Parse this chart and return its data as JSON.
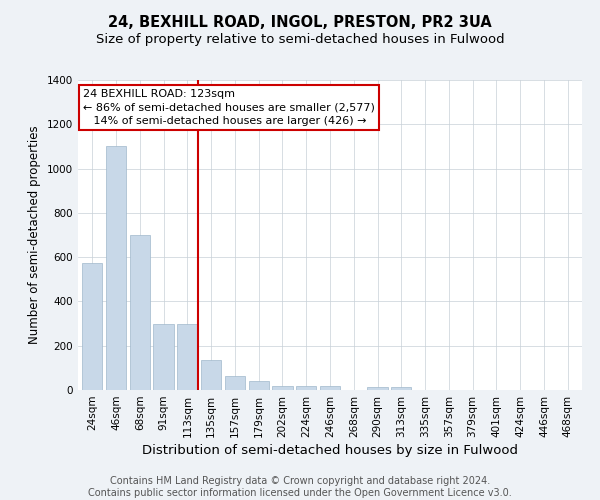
{
  "title": "24, BEXHILL ROAD, INGOL, PRESTON, PR2 3UA",
  "subtitle": "Size of property relative to semi-detached houses in Fulwood",
  "xlabel": "Distribution of semi-detached houses by size in Fulwood",
  "ylabel": "Number of semi-detached properties",
  "footer": "Contains HM Land Registry data © Crown copyright and database right 2024.\nContains public sector information licensed under the Open Government Licence v3.0.",
  "categories": [
    "24sqm",
    "46sqm",
    "68sqm",
    "91sqm",
    "113sqm",
    "135sqm",
    "157sqm",
    "179sqm",
    "202sqm",
    "224sqm",
    "246sqm",
    "268sqm",
    "290sqm",
    "313sqm",
    "335sqm",
    "357sqm",
    "379sqm",
    "401sqm",
    "424sqm",
    "446sqm",
    "468sqm"
  ],
  "values": [
    575,
    1100,
    700,
    300,
    300,
    135,
    65,
    40,
    20,
    20,
    20,
    0,
    15,
    15,
    0,
    0,
    0,
    0,
    0,
    0,
    0
  ],
  "bar_color": "#c8d8e8",
  "bar_edge_color": "#a0b8cc",
  "vline_x": 4.43,
  "vline_color": "#cc0000",
  "annotation_text": "24 BEXHILL ROAD: 123sqm\n← 86% of semi-detached houses are smaller (2,577)\n   14% of semi-detached houses are larger (426) →",
  "annotation_box_color": "#ffffff",
  "annotation_box_edge": "#cc0000",
  "ylim": [
    0,
    1400
  ],
  "yticks": [
    0,
    200,
    400,
    600,
    800,
    1000,
    1200,
    1400
  ],
  "bg_color": "#eef2f6",
  "plot_bg_color": "#ffffff",
  "title_fontsize": 10.5,
  "subtitle_fontsize": 9.5,
  "xlabel_fontsize": 9.5,
  "ylabel_fontsize": 8.5,
  "footer_fontsize": 7,
  "tick_fontsize": 7.5,
  "annotation_fontsize": 8
}
